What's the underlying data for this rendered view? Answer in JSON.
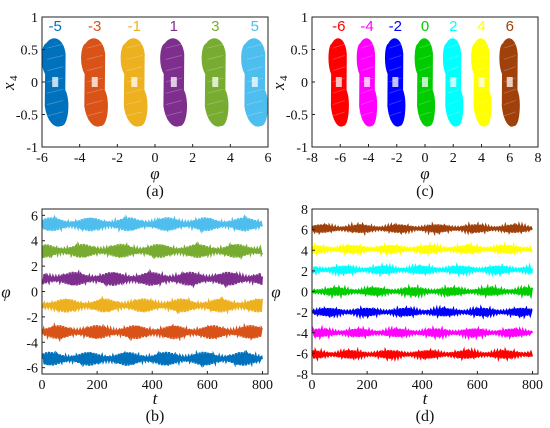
{
  "chart_data": [
    {
      "id": "a",
      "type": "scatter",
      "caption": "(a)",
      "xlabel": "φ",
      "ylabel": "x",
      "ylabel_sub": "4",
      "xlim": [
        -6,
        6
      ],
      "ylim": [
        -1,
        1
      ],
      "xticks": [
        "-6",
        "-4",
        "-2",
        "0",
        "2",
        "4",
        "6"
      ],
      "yticks": [
        "-1",
        "-0.5",
        "0",
        "0.5",
        "1"
      ],
      "grid": false,
      "series": [
        {
          "name": "-5",
          "center": -5.3,
          "color": "#0072BD"
        },
        {
          "name": "-3",
          "center": -3.2,
          "color": "#D95319"
        },
        {
          "name": "-1",
          "center": -1.1,
          "color": "#EDB120"
        },
        {
          "name": "1",
          "center": 1.0,
          "color": "#7E2F8E"
        },
        {
          "name": "3",
          "center": 3.2,
          "color": "#77AC30"
        },
        {
          "name": "5",
          "center": 5.3,
          "color": "#4DBEEE"
        }
      ]
    },
    {
      "id": "c",
      "type": "scatter",
      "caption": "(c)",
      "xlabel": "φ",
      "ylabel": "x",
      "ylabel_sub": "4",
      "xlim": [
        -8,
        8
      ],
      "ylim": [
        -1,
        1
      ],
      "xticks": [
        "-8",
        "-6",
        "-4",
        "-2",
        "0",
        "2",
        "4",
        "6",
        "8"
      ],
      "yticks": [
        "-1",
        "-0.5",
        "0",
        "0.5",
        "1"
      ],
      "grid": false,
      "series": [
        {
          "name": "-6",
          "center": -6.1,
          "color": "#FF0000"
        },
        {
          "name": "-4",
          "center": -4.1,
          "color": "#FF00FF"
        },
        {
          "name": "-2",
          "center": -2.1,
          "color": "#0000FF"
        },
        {
          "name": "0",
          "center": 0.0,
          "color": "#00CC00"
        },
        {
          "name": "2",
          "center": 2.0,
          "color": "#00FFFF"
        },
        {
          "name": "4",
          "center": 4.0,
          "color": "#FFFF00"
        },
        {
          "name": "6",
          "center": 6.0,
          "color": "#A0400A"
        }
      ]
    },
    {
      "id": "b",
      "type": "line",
      "caption": "(b)",
      "xlabel": "t",
      "ylabel": "φ",
      "xlim": [
        0,
        820
      ],
      "ylim": [
        -6.5,
        6.5
      ],
      "xticks": [
        "0",
        "200",
        "400",
        "600",
        "800"
      ],
      "yticks": [
        "-6",
        "-4",
        "-2",
        "0",
        "2",
        "4",
        "6"
      ],
      "grid": false,
      "series": [
        {
          "mean": 5.3,
          "amp": 0.55,
          "color": "#4DBEEE"
        },
        {
          "mean": 3.2,
          "amp": 0.55,
          "color": "#77AC30"
        },
        {
          "mean": 1.0,
          "amp": 0.55,
          "color": "#7E2F8E"
        },
        {
          "mean": -1.1,
          "amp": 0.55,
          "color": "#EDB120"
        },
        {
          "mean": -3.2,
          "amp": 0.55,
          "color": "#D95319"
        },
        {
          "mean": -5.3,
          "amp": 0.55,
          "color": "#0072BD"
        }
      ]
    },
    {
      "id": "d",
      "type": "line",
      "caption": "(d)",
      "xlabel": "t",
      "ylabel": "φ",
      "xlim": [
        0,
        820
      ],
      "ylim": [
        -8,
        8
      ],
      "xticks": [
        "0",
        "200",
        "400",
        "600",
        "800"
      ],
      "yticks": [
        "-8",
        "-6",
        "-4",
        "-2",
        "0",
        "2",
        "4",
        "6",
        "8"
      ],
      "grid": false,
      "series": [
        {
          "mean": 6.1,
          "amp": 0.4,
          "color": "#A0400A"
        },
        {
          "mean": 4.1,
          "amp": 0.4,
          "color": "#FFFF00"
        },
        {
          "mean": 2.1,
          "amp": 0.4,
          "color": "#00FFFF"
        },
        {
          "mean": 0.0,
          "amp": 0.4,
          "color": "#00CC00"
        },
        {
          "mean": -2.0,
          "amp": 0.4,
          "color": "#0000FF"
        },
        {
          "mean": -4.0,
          "amp": 0.4,
          "color": "#FF00FF"
        },
        {
          "mean": -6.1,
          "amp": 0.4,
          "color": "#FF0000"
        }
      ]
    }
  ]
}
